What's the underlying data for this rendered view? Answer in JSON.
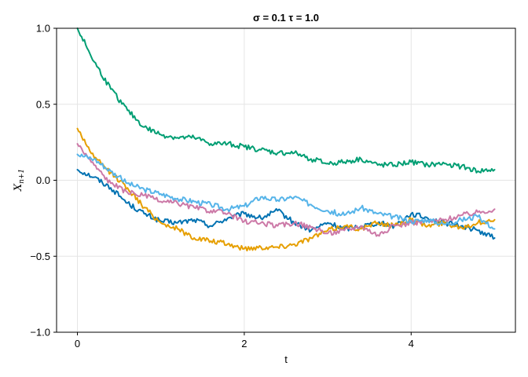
{
  "chart_data": {
    "type": "line",
    "title": "σ = 0.1 τ = 1.0",
    "xlabel": "t",
    "ylabel": "X",
    "ylabel_subscript": "n+1",
    "xlim": [
      -0.25,
      5.25
    ],
    "ylim": [
      -1.0,
      1.0
    ],
    "xticks": [
      0,
      2,
      4
    ],
    "xtick_labels": [
      "0",
      "2",
      "4"
    ],
    "yticks": [
      1.0,
      0.5,
      0.0,
      -0.5,
      -1.0
    ],
    "ytick_labels": [
      "1.0",
      "0.5",
      "0.0",
      "−0.5",
      "−1.0"
    ],
    "grid": true,
    "legend": "none",
    "series": [
      {
        "color": "#0072b2",
        "x": [
          0,
          0.2,
          0.4,
          0.6,
          0.8,
          1.0,
          1.2,
          1.4,
          1.6,
          1.8,
          2.0,
          2.2,
          2.4,
          2.6,
          2.8,
          3.0,
          3.2,
          3.4,
          3.6,
          3.8,
          4.0,
          4.2,
          4.4,
          4.6,
          4.8,
          5.0
        ],
        "y": [
          0.07,
          0.02,
          -0.05,
          -0.15,
          -0.22,
          -0.27,
          -0.28,
          -0.26,
          -0.3,
          -0.25,
          -0.22,
          -0.25,
          -0.2,
          -0.28,
          -0.33,
          -0.28,
          -0.32,
          -0.3,
          -0.28,
          -0.3,
          -0.22,
          -0.25,
          -0.28,
          -0.3,
          -0.33,
          -0.38
        ]
      },
      {
        "color": "#e69f00",
        "x": [
          0,
          0.2,
          0.4,
          0.6,
          0.8,
          1.0,
          1.2,
          1.4,
          1.6,
          1.8,
          2.0,
          2.2,
          2.4,
          2.6,
          2.8,
          3.0,
          3.2,
          3.4,
          3.6,
          3.8,
          4.0,
          4.2,
          4.4,
          4.6,
          4.8,
          5.0
        ],
        "y": [
          0.34,
          0.15,
          0.05,
          -0.05,
          -0.18,
          -0.28,
          -0.32,
          -0.38,
          -0.4,
          -0.42,
          -0.45,
          -0.44,
          -0.44,
          -0.42,
          -0.38,
          -0.33,
          -0.3,
          -0.32,
          -0.28,
          -0.3,
          -0.26,
          -0.3,
          -0.28,
          -0.31,
          -0.28,
          -0.26
        ]
      },
      {
        "color": "#009e73",
        "x": [
          0,
          0.2,
          0.4,
          0.6,
          0.8,
          1.0,
          1.2,
          1.4,
          1.6,
          1.8,
          2.0,
          2.2,
          2.4,
          2.6,
          2.8,
          3.0,
          3.2,
          3.4,
          3.6,
          3.8,
          4.0,
          4.2,
          4.4,
          4.6,
          4.8,
          5.0
        ],
        "y": [
          1.0,
          0.78,
          0.6,
          0.46,
          0.35,
          0.3,
          0.28,
          0.28,
          0.24,
          0.24,
          0.22,
          0.2,
          0.18,
          0.18,
          0.14,
          0.11,
          0.12,
          0.14,
          0.1,
          0.1,
          0.12,
          0.1,
          0.11,
          0.09,
          0.06,
          0.07
        ]
      },
      {
        "color": "#cc79a7",
        "x": [
          0,
          0.2,
          0.4,
          0.6,
          0.8,
          1.0,
          1.2,
          1.4,
          1.6,
          1.8,
          2.0,
          2.2,
          2.4,
          2.6,
          2.8,
          3.0,
          3.2,
          3.4,
          3.6,
          3.8,
          4.0,
          4.2,
          4.4,
          4.6,
          4.8,
          5.0
        ],
        "y": [
          0.24,
          0.1,
          -0.02,
          -0.08,
          -0.1,
          -0.14,
          -0.15,
          -0.18,
          -0.2,
          -0.22,
          -0.27,
          -0.28,
          -0.3,
          -0.28,
          -0.31,
          -0.35,
          -0.33,
          -0.3,
          -0.36,
          -0.3,
          -0.28,
          -0.27,
          -0.26,
          -0.23,
          -0.21,
          -0.19
        ]
      },
      {
        "color": "#56b4e9",
        "x": [
          0,
          0.2,
          0.4,
          0.6,
          0.8,
          1.0,
          1.2,
          1.4,
          1.6,
          1.8,
          2.0,
          2.2,
          2.4,
          2.6,
          2.8,
          3.0,
          3.2,
          3.4,
          3.6,
          3.8,
          4.0,
          4.2,
          4.4,
          4.6,
          4.8,
          5.0
        ],
        "y": [
          0.17,
          0.14,
          0.06,
          -0.02,
          -0.06,
          -0.09,
          -0.12,
          -0.14,
          -0.16,
          -0.19,
          -0.17,
          -0.11,
          -0.13,
          -0.11,
          -0.16,
          -0.2,
          -0.23,
          -0.18,
          -0.22,
          -0.24,
          -0.27,
          -0.26,
          -0.29,
          -0.26,
          -0.24,
          -0.32
        ]
      }
    ]
  }
}
